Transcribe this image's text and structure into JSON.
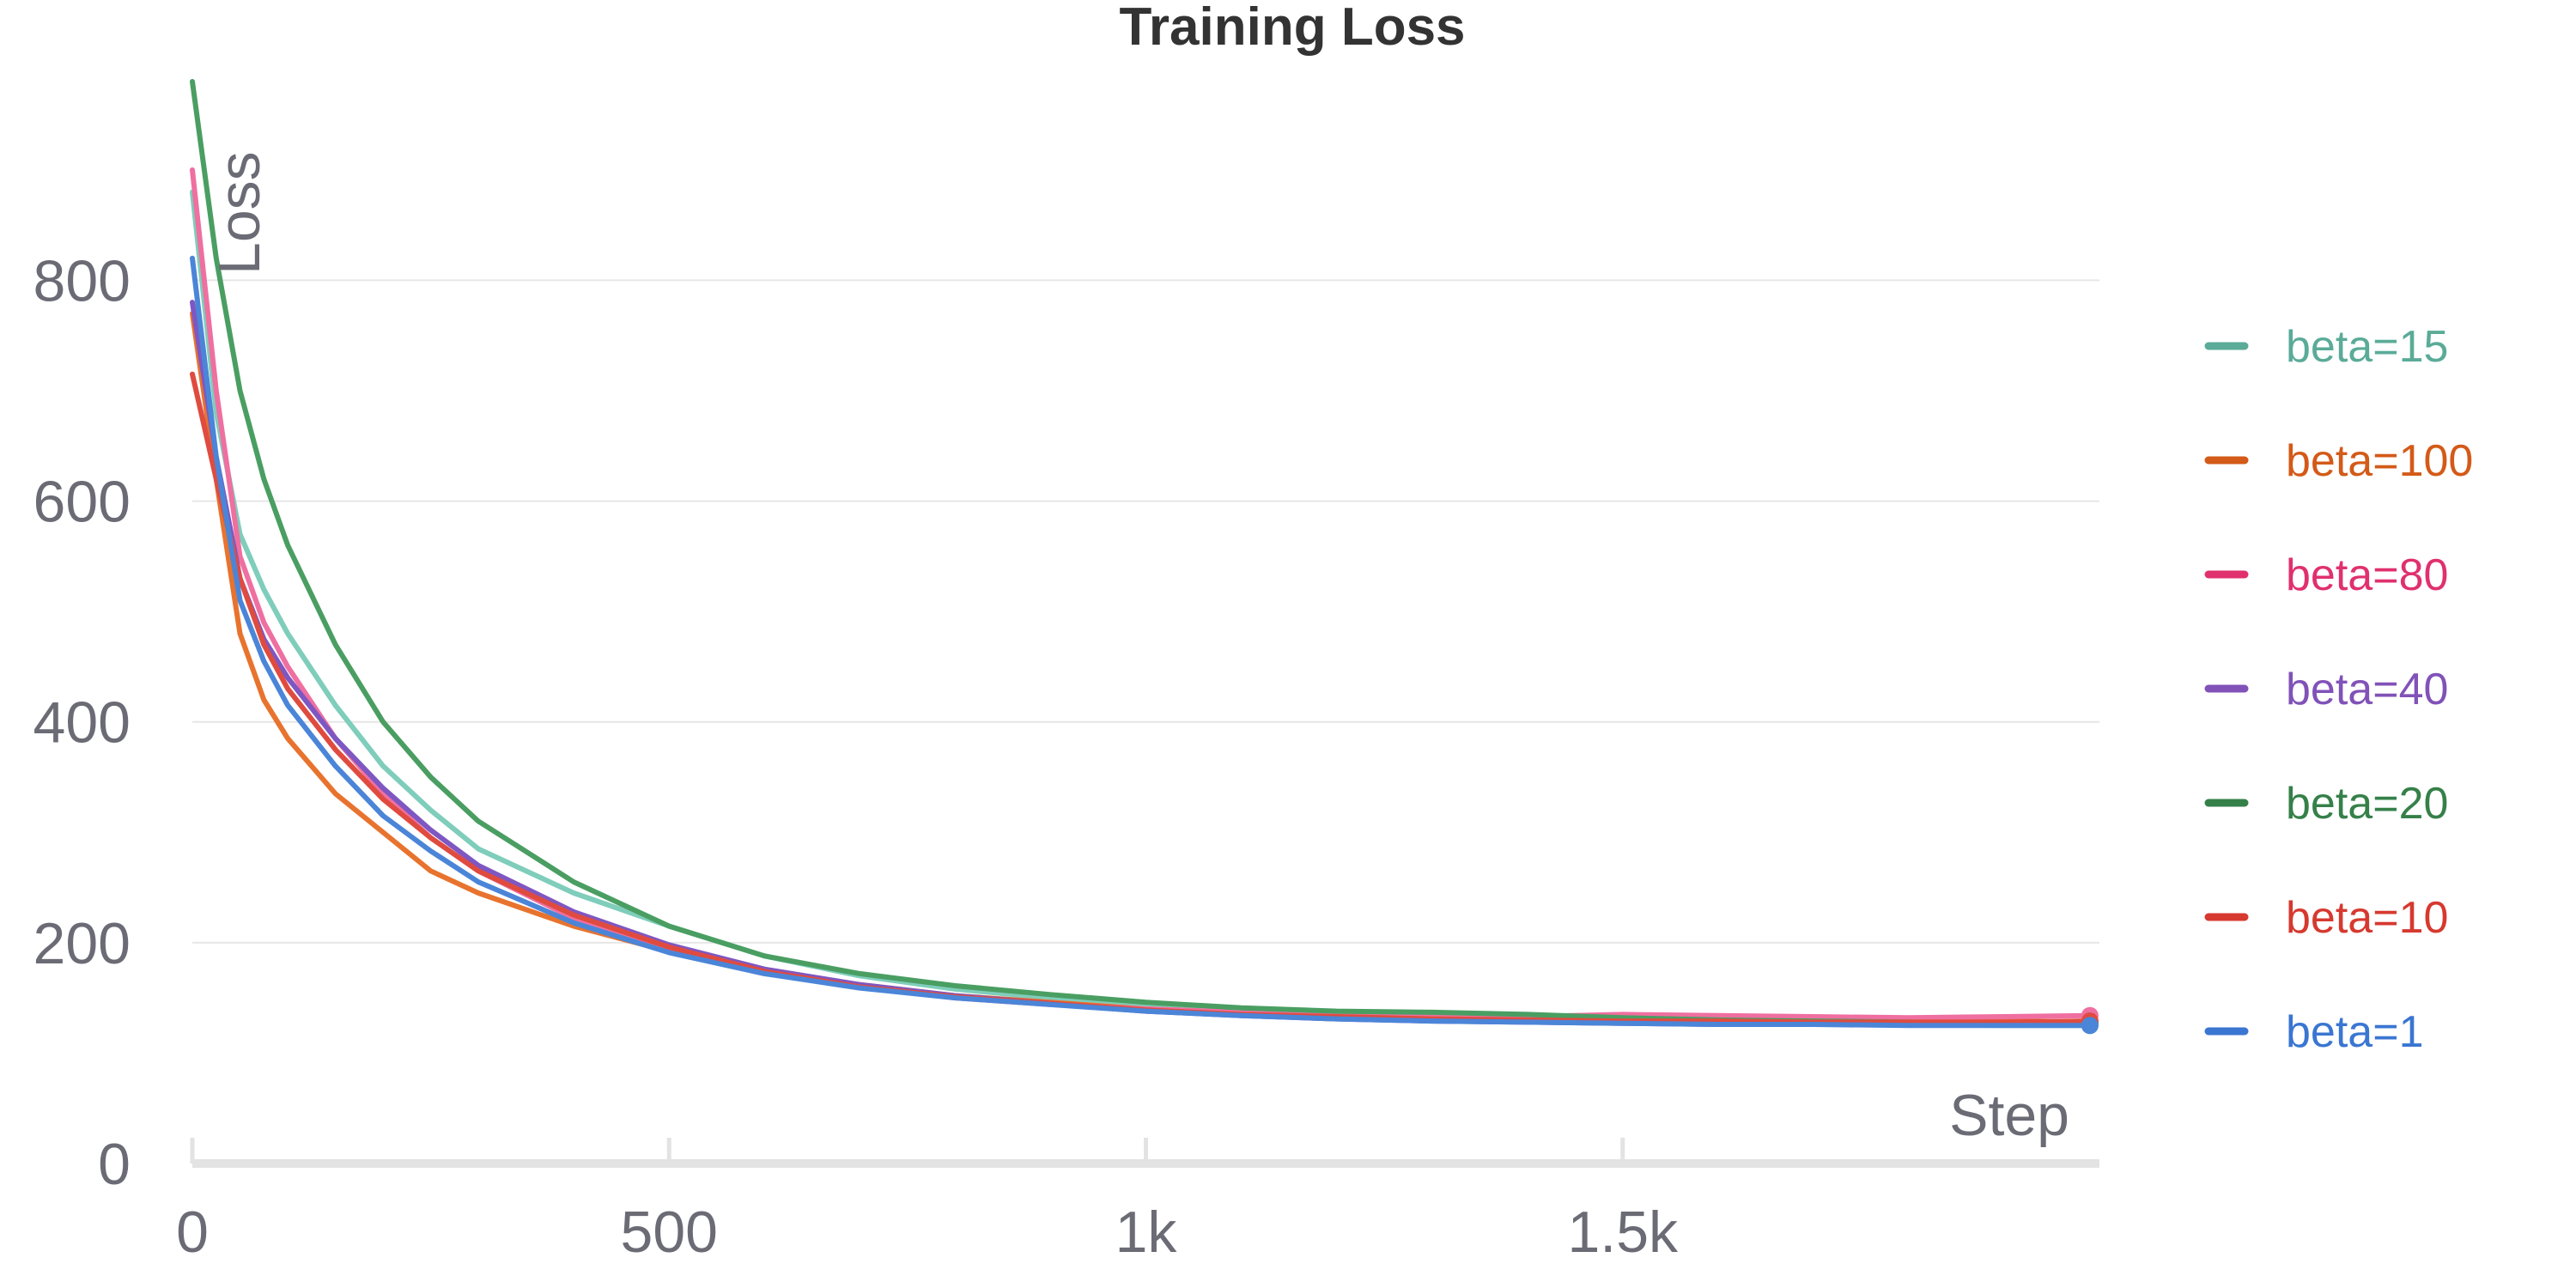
{
  "chart_data": {
    "type": "line",
    "title": "Training Loss",
    "xlabel": "Step",
    "ylabel": "Loss",
    "xlim": [
      0,
      2000
    ],
    "ylim": [
      0,
      980
    ],
    "x_ticks": [
      0,
      500,
      1000,
      1500
    ],
    "x_tick_labels": [
      "0",
      "500",
      "1k",
      "1.5k"
    ],
    "y_ticks": [
      0,
      200,
      400,
      600,
      800
    ],
    "y_tick_labels": [
      "0",
      "200",
      "400",
      "600",
      "800"
    ],
    "grid": true,
    "legend_position": "right",
    "x": [
      0,
      25,
      50,
      75,
      100,
      150,
      200,
      250,
      300,
      400,
      500,
      600,
      700,
      800,
      900,
      1000,
      1100,
      1200,
      1300,
      1400,
      1500,
      1600,
      1700,
      1800,
      1900,
      1990
    ],
    "series": [
      {
        "name": "beta=15",
        "color": "#7fcdbb",
        "legend_color": "#5aab98",
        "values": [
          880,
          680,
          570,
          520,
          480,
          415,
          360,
          320,
          285,
          245,
          215,
          188,
          170,
          158,
          150,
          142,
          138,
          136,
          133,
          131,
          129,
          127,
          126,
          126,
          125,
          125
        ]
      },
      {
        "name": "beta=100",
        "color": "#e8732e",
        "legend_color": "#d35a18",
        "values": [
          770,
          620,
          480,
          420,
          385,
          335,
          300,
          265,
          245,
          215,
          192,
          172,
          162,
          152,
          146,
          140,
          137,
          135,
          133,
          132,
          131,
          130,
          130,
          129,
          129,
          128
        ]
      },
      {
        "name": "beta=80",
        "color": "#ef6fa0",
        "legend_color": "#e0306e",
        "values": [
          900,
          700,
          550,
          490,
          450,
          385,
          335,
          295,
          265,
          222,
          193,
          173,
          160,
          150,
          144,
          140,
          137,
          136,
          134,
          133,
          135,
          134,
          133,
          132,
          133,
          134
        ]
      },
      {
        "name": "beta=40",
        "color": "#7e57c2",
        "legend_color": "#8152b8",
        "values": [
          780,
          640,
          530,
          475,
          440,
          385,
          340,
          302,
          270,
          228,
          198,
          176,
          162,
          152,
          145,
          138,
          134,
          131,
          129,
          128,
          127,
          126,
          126,
          126,
          126,
          126
        ]
      },
      {
        "name": "beta=20",
        "color": "#4a9e62",
        "legend_color": "#358049",
        "values": [
          980,
          820,
          700,
          620,
          560,
          470,
          400,
          350,
          310,
          255,
          215,
          188,
          172,
          161,
          153,
          146,
          141,
          138,
          137,
          135,
          132,
          130,
          129,
          128,
          127,
          127
        ]
      },
      {
        "name": "beta=10",
        "color": "#e04b3f",
        "legend_color": "#d6392f",
        "values": [
          715,
          620,
          530,
          470,
          430,
          375,
          330,
          295,
          265,
          225,
          196,
          174,
          160,
          151,
          145,
          139,
          135,
          133,
          131,
          130,
          129,
          129,
          128,
          128,
          128,
          129
        ]
      },
      {
        "name": "beta=1",
        "color": "#4b85d8",
        "legend_color": "#3a76d2",
        "values": [
          820,
          640,
          510,
          455,
          415,
          360,
          315,
          283,
          255,
          218,
          191,
          172,
          159,
          150,
          144,
          138,
          134,
          131,
          129,
          128,
          127,
          126,
          126,
          125,
          125,
          125
        ]
      }
    ]
  }
}
